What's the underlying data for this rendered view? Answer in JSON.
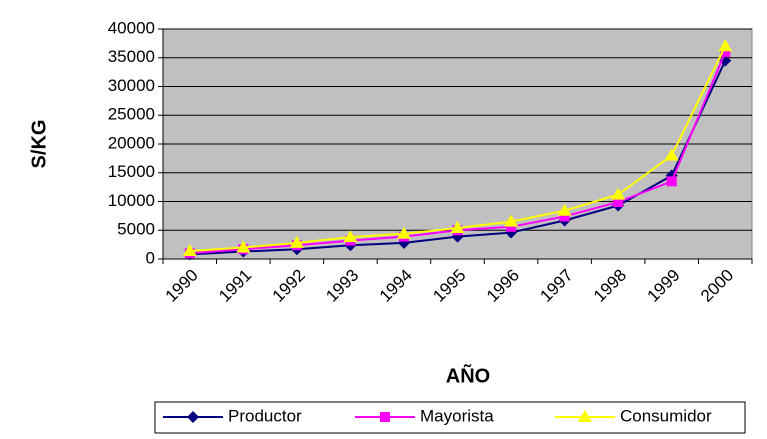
{
  "chart_data": {
    "type": "line",
    "x_label": "AÑO",
    "y_label": "S/KG",
    "categories": [
      "1990",
      "1991",
      "1992",
      "1993",
      "1994",
      "1995",
      "1996",
      "1997",
      "1998",
      "1999",
      "2000"
    ],
    "series": [
      {
        "name": "Productor",
        "color": "#000080",
        "marker": "diamond",
        "values": [
          800,
          1300,
          1700,
          2400,
          2800,
          3900,
          4600,
          6700,
          9300,
          14500,
          34500
        ]
      },
      {
        "name": "Mayorista",
        "color": "#ff00ff",
        "marker": "square",
        "values": [
          1000,
          1700,
          2400,
          3200,
          3900,
          5000,
          5600,
          7400,
          9900,
          13500,
          36000
        ]
      },
      {
        "name": "Consumidor",
        "color": "#ffff00",
        "marker": "triangle",
        "values": [
          1400,
          2000,
          2800,
          3800,
          4400,
          5400,
          6500,
          8400,
          11200,
          18000,
          37000
        ]
      }
    ],
    "ylim": [
      0,
      40000
    ],
    "yticks": [
      0,
      5000,
      10000,
      15000,
      20000,
      25000,
      30000,
      35000,
      40000
    ],
    "grid": true,
    "legend": "bottom",
    "plot_background": "#c0c0c0"
  }
}
